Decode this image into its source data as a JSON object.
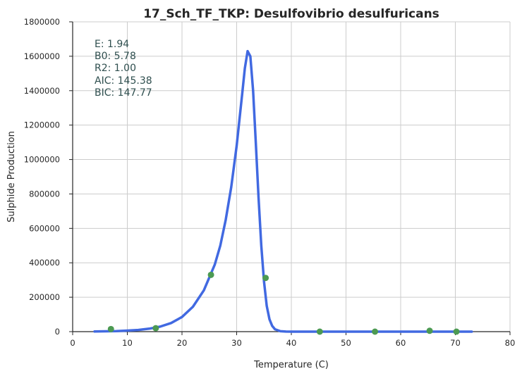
{
  "chart_data": {
    "type": "scatter",
    "title": "17_Sch_TF_TKP: Desulfovibrio desulfuricans",
    "xlabel": "Temperature (C)",
    "ylabel": "Sulphide Production",
    "xlim": [
      0,
      80
    ],
    "ylim": [
      0,
      1800000
    ],
    "xticks": [
      "0",
      "10",
      "20",
      "30",
      "40",
      "50",
      "60",
      "70",
      "80"
    ],
    "yticks": [
      "0",
      "200000",
      "400000",
      "600000",
      "800000",
      "1000000",
      "1200000",
      "1400000",
      "1600000",
      "1800000"
    ],
    "grid": true,
    "annotations": [
      "E:  1.94",
      "B0:  5.78",
      "R2:  1.00",
      "AIC: 145.38",
      "BIC: 147.77"
    ],
    "series": [
      {
        "type": "scatter",
        "color": "#4c9a52",
        "x": [
          7,
          15.2,
          25.3,
          35.3,
          45.2,
          55.3,
          65.3,
          70.2
        ],
        "y": [
          15000,
          20000,
          330000,
          312000,
          0,
          0,
          5000,
          0
        ]
      },
      {
        "type": "line",
        "color": "#4169e1",
        "x": [
          4,
          6,
          8,
          10,
          12,
          14,
          16,
          18,
          20,
          22,
          24,
          26,
          27,
          28,
          29,
          30,
          31,
          31.5,
          32,
          32.5,
          33,
          33.5,
          34,
          34.5,
          35,
          35.5,
          36,
          36.5,
          37,
          38,
          39,
          40,
          42,
          45,
          50,
          60,
          73
        ],
        "y": [
          1000,
          2000,
          3000,
          6000,
          10000,
          17000,
          29000,
          50000,
          85000,
          145000,
          240000,
          390000,
          500000,
          650000,
          840000,
          1080000,
          1380000,
          1530000,
          1630000,
          1600000,
          1400000,
          1100000,
          780000,
          500000,
          290000,
          150000,
          72000,
          33000,
          14000,
          2500,
          500,
          100,
          0,
          0,
          0,
          0,
          0
        ]
      }
    ]
  }
}
